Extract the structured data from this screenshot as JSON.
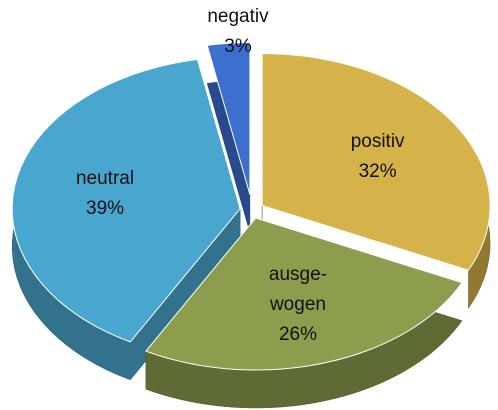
{
  "chart_data": {
    "type": "pie",
    "categories": [
      "positiv",
      "ausge-\nwogen",
      "neutral",
      "negativ"
    ],
    "values": [
      32,
      26,
      39,
      3
    ],
    "value_labels": [
      "32%",
      "26%",
      "39%",
      "3%"
    ],
    "colors": [
      "#d6b24a",
      "#8c9e4e",
      "#49a7cf",
      "#3d6fcf"
    ]
  }
}
